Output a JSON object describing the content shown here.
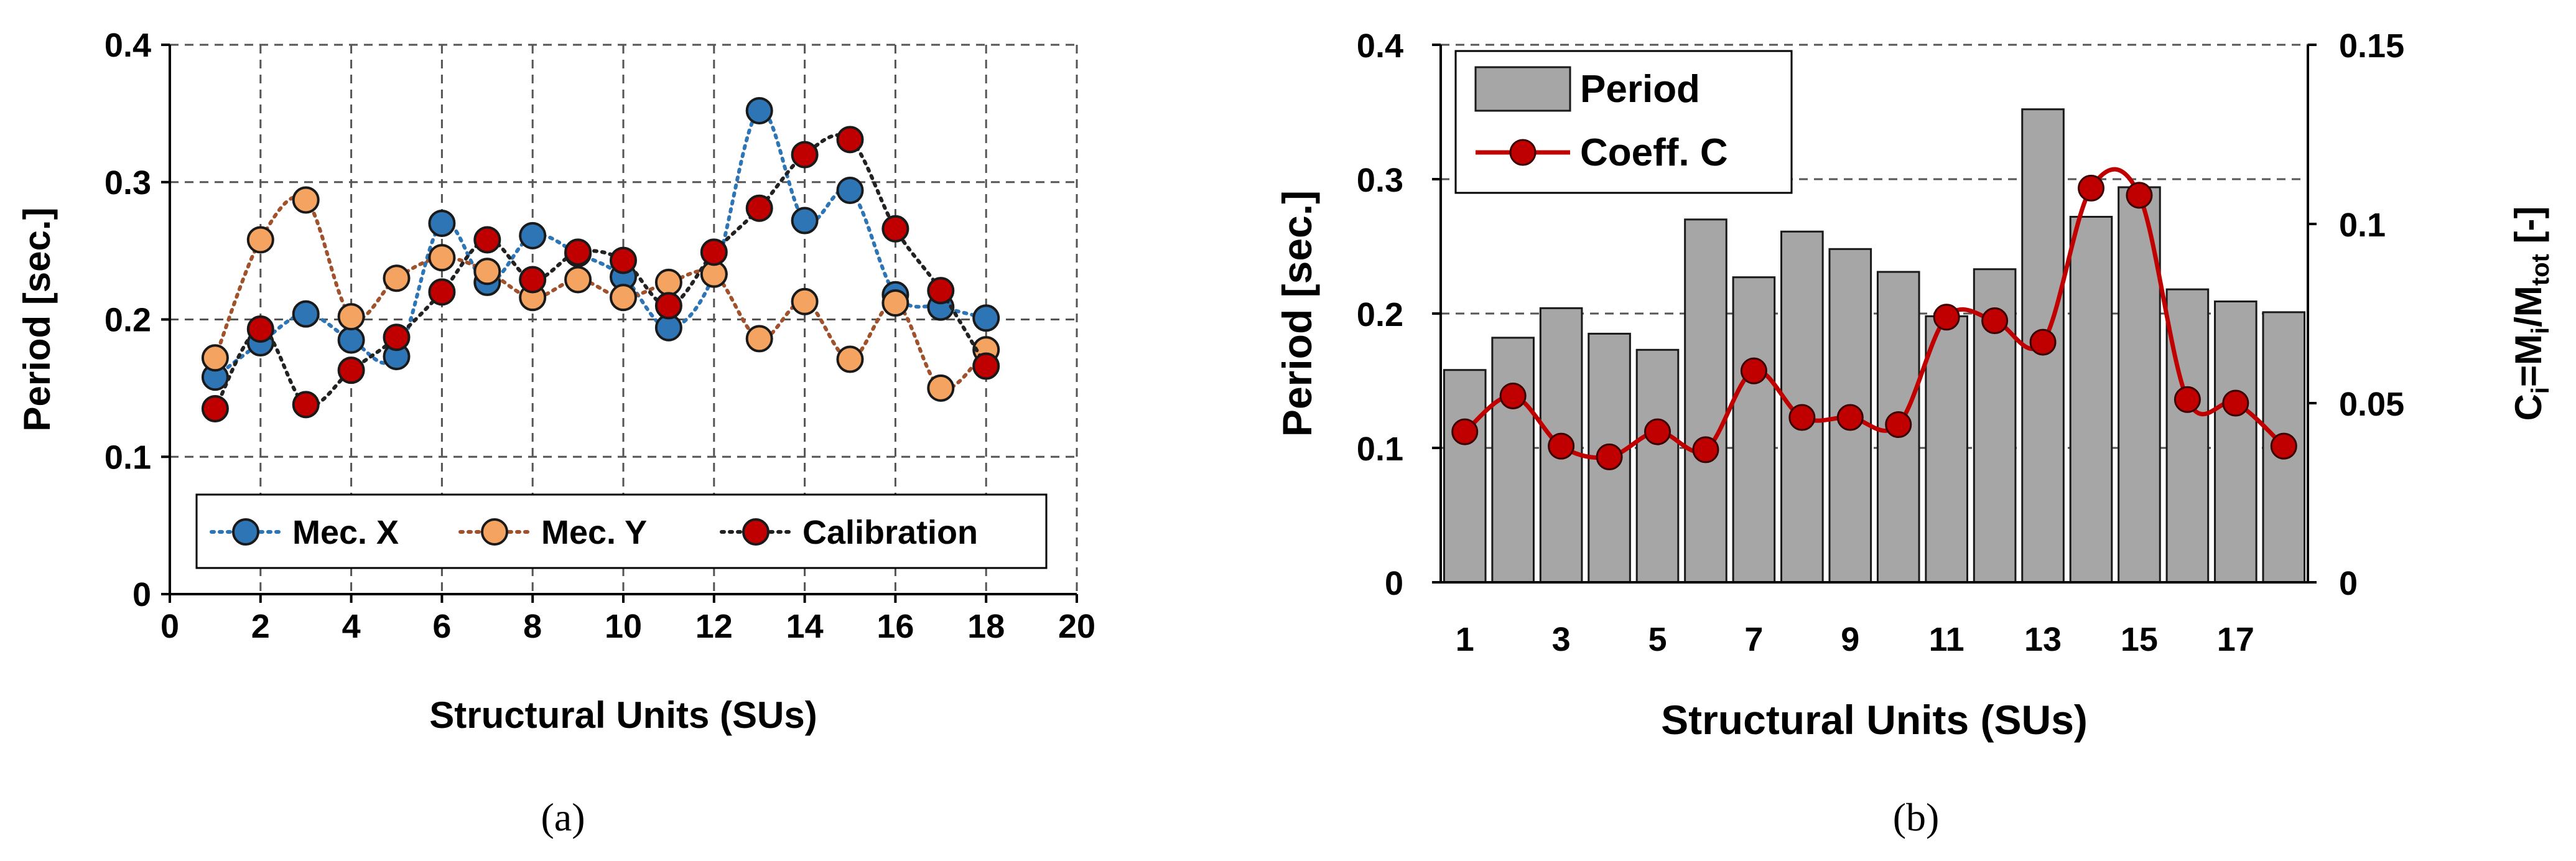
{
  "chart_data": [
    {
      "panel": "(a)",
      "type": "line",
      "xlabel": "Structural Units (SUs)",
      "ylabel": "Period [sec.]",
      "xlim": [
        0,
        20
      ],
      "ylim": [
        0,
        0.4
      ],
      "x_ticks": [
        "0",
        "2",
        "4",
        "6",
        "8",
        "10",
        "12",
        "14",
        "16",
        "18",
        "20"
      ],
      "y_ticks": [
        "0",
        "0.1",
        "0.2",
        "0.3",
        "0.4"
      ],
      "grid": true,
      "legend": "bottom",
      "x": [
        1,
        2,
        3,
        4,
        5,
        6,
        7,
        8,
        9,
        10,
        11,
        12,
        13,
        14,
        15,
        16,
        17,
        18
      ],
      "series": [
        {
          "name": "Mec. X",
          "color": "#2E75B6",
          "line_style": "dotted",
          "values": [
            0.158,
            0.183,
            0.204,
            0.185,
            0.173,
            0.27,
            0.227,
            0.261,
            0.248,
            0.231,
            0.194,
            0.233,
            0.352,
            0.272,
            0.294,
            0.218,
            0.209,
            0.201
          ]
        },
        {
          "name": "Mec. Y",
          "color": "#F4A460",
          "line_style": "dotted",
          "values": [
            0.172,
            0.258,
            0.287,
            0.202,
            0.23,
            0.245,
            0.235,
            0.216,
            0.229,
            0.216,
            0.227,
            0.233,
            0.186,
            0.213,
            0.171,
            0.212,
            0.15,
            0.178
          ]
        },
        {
          "name": "Calibration",
          "color": "#C00000",
          "line_style": "dotted",
          "values": [
            0.135,
            0.193,
            0.138,
            0.163,
            0.187,
            0.22,
            0.258,
            0.229,
            0.249,
            0.243,
            0.21,
            0.249,
            0.281,
            0.32,
            0.331,
            0.266,
            0.221,
            0.166
          ]
        }
      ]
    },
    {
      "panel": "(b)",
      "type": "bar",
      "xlabel": "Structural Units (SUs)",
      "ylabel": "Period [sec.]",
      "ylabel_right": "C_i=M_i/M_tot [-]",
      "ylabel_right_parts": {
        "c": "C",
        "c_sub": "i",
        "eq_m": "=M",
        "m_sub": "i",
        "slash_m": "/M",
        "tot_sub": "tot",
        "unit": " [-]"
      },
      "ylim": [
        0,
        0.4
      ],
      "ylim_right": [
        0,
        0.15
      ],
      "y_ticks": [
        "0",
        "0.1",
        "0.2",
        "0.3",
        "0.4"
      ],
      "y_ticks_right": [
        "0",
        "0.05",
        "0.1",
        "0.15"
      ],
      "x_ticks": [
        "1",
        "3",
        "5",
        "7",
        "9",
        "11",
        "13",
        "15",
        "17"
      ],
      "grid": true,
      "legend": "top-left",
      "categories": [
        "1",
        "2",
        "3",
        "4",
        "5",
        "6",
        "7",
        "8",
        "9",
        "10",
        "11",
        "12",
        "13",
        "14",
        "15",
        "16",
        "17",
        "18"
      ],
      "series": [
        {
          "name": "Period",
          "type": "bar",
          "color": "#A6A6A6",
          "axis": "left",
          "values": [
            0.158,
            0.182,
            0.204,
            0.185,
            0.173,
            0.27,
            0.227,
            0.261,
            0.248,
            0.231,
            0.198,
            0.233,
            0.352,
            0.272,
            0.294,
            0.218,
            0.209,
            0.201
          ]
        },
        {
          "name": "Coeff. C",
          "type": "line",
          "color": "#C00000",
          "axis": "right",
          "values": [
            0.042,
            0.052,
            0.038,
            0.035,
            0.042,
            0.037,
            0.059,
            0.046,
            0.046,
            0.044,
            0.074,
            0.073,
            0.067,
            0.11,
            0.108,
            0.051,
            0.05,
            0.038
          ]
        }
      ]
    }
  ]
}
